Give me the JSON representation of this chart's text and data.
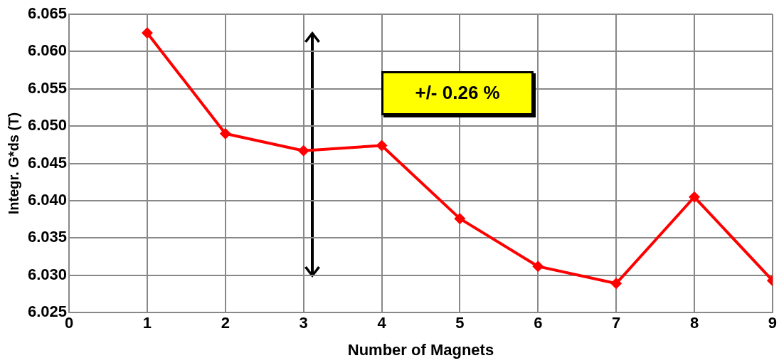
{
  "chart_data": {
    "type": "line",
    "xlabel": "Number of Magnets",
    "ylabel": "Integr. G*ds (T)",
    "annotations": [
      "+/- 0.26 %"
    ],
    "x": [
      1,
      2,
      3,
      4,
      5,
      6,
      7,
      8,
      9
    ],
    "series": [
      {
        "color": "#ff0000",
        "values": [
          6.0625,
          6.049,
          6.0467,
          6.0474,
          6.0376,
          6.0312,
          6.0289,
          6.0405,
          6.0293
        ]
      }
    ],
    "xlim": [
      0,
      9
    ],
    "xticks": [
      0,
      1,
      2,
      3,
      4,
      5,
      6,
      7,
      8,
      9
    ],
    "ylim": [
      6.025,
      6.065
    ],
    "yticks": [
      {
        "value": 6.025,
        "label": "6.025"
      },
      {
        "value": 6.03,
        "label": "6.030"
      },
      {
        "value": 6.035,
        "label": "6.035"
      },
      {
        "value": 6.04,
        "label": "6.040"
      },
      {
        "value": 6.045,
        "label": "6.045"
      },
      {
        "value": 6.05,
        "label": "6.050"
      },
      {
        "value": 6.055,
        "label": "6.055"
      },
      {
        "value": 6.06,
        "label": "6.060"
      },
      {
        "value": 6.065,
        "label": "6.065"
      }
    ],
    "grid": true,
    "legend": false,
    "marker": "diamond",
    "line_style": "solid"
  }
}
